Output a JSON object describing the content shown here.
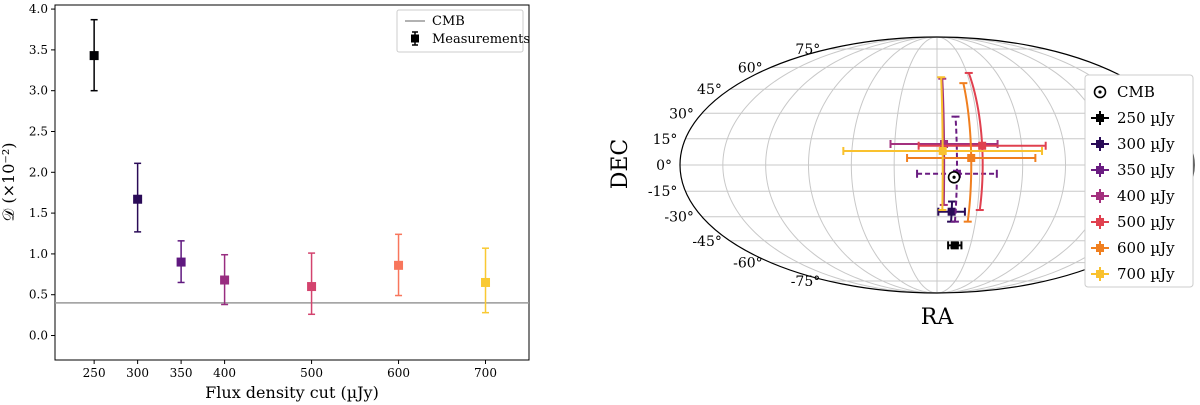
{
  "chart_data": [
    {
      "type": "scatter",
      "xlabel": "Flux density cut (µJy)",
      "ylabel": "𝒟 (×10⁻²)",
      "xlim": [
        205,
        750
      ],
      "ylim": [
        -0.3,
        4.05
      ],
      "xticks": [
        250,
        300,
        350,
        400,
        500,
        600,
        700
      ],
      "yticks": [
        0.0,
        0.5,
        1.0,
        1.5,
        2.0,
        2.5,
        3.0,
        3.5,
        4.0
      ],
      "cmb_level": 0.4,
      "legend": {
        "position": "top-right",
        "entries": [
          "CMB",
          "Measurements"
        ]
      },
      "series": [
        {
          "name": "Measurements",
          "points": [
            {
              "x": 250,
              "y": 3.43,
              "err_low": 0.43,
              "err_high": 0.44,
              "color": "#000004"
            },
            {
              "x": 300,
              "y": 1.67,
              "err_low": 0.4,
              "err_high": 0.44,
              "color": "#2a0b57"
            },
            {
              "x": 350,
              "y": 0.9,
              "err_low": 0.25,
              "err_high": 0.26,
              "color": "#5f187f"
            },
            {
              "x": 400,
              "y": 0.68,
              "err_low": 0.3,
              "err_high": 0.31,
              "color": "#982d80"
            },
            {
              "x": 500,
              "y": 0.6,
              "err_low": 0.34,
              "err_high": 0.41,
              "color": "#d3436e"
            },
            {
              "x": 600,
              "y": 0.86,
              "err_low": 0.37,
              "err_high": 0.38,
              "color": "#f8765c"
            },
            {
              "x": 700,
              "y": 0.65,
              "err_low": 0.37,
              "err_high": 0.42,
              "color": "#f9c932"
            }
          ]
        }
      ]
    },
    {
      "type": "scatter",
      "xlabel": "RA",
      "ylabel": "DEC",
      "projection": "mollweide",
      "dec_labels": [
        "75°",
        "60°",
        "45°",
        "30°",
        "15°",
        "0°",
        "-15°",
        "-30°",
        "-45°",
        "-60°",
        "-75°"
      ],
      "legend": {
        "position": "right"
      },
      "cmb": {
        "name": "CMB",
        "ra": 168,
        "dec": -7
      },
      "series": [
        {
          "name": "250 µJy",
          "color": "#000000",
          "ra": 164,
          "dec": -48,
          "ra_err": 6,
          "dec_err": 1.5,
          "dashed": false
        },
        {
          "name": "300 µJy",
          "color": "#2a0b57",
          "ra": 169,
          "dec": -27,
          "ra_err": 10,
          "dec_err_low": 6,
          "dec_err_high": 6,
          "dashed": false
        },
        {
          "name": "350 µJy",
          "color": "#6a1c81",
          "ra": 166,
          "dec": -5,
          "ra_err": 28,
          "dec_err_low": 28,
          "dec_err_high": 33,
          "dashed": true
        },
        {
          "name": "400 µJy",
          "color": "#a3307e",
          "ra": 175,
          "dec": 12,
          "ra_err": 38,
          "dec_err_low": 35,
          "dec_err_high": 40,
          "dashed": false
        },
        {
          "name": "500 µJy",
          "color": "#e0404f",
          "ra": 148,
          "dec": 11,
          "ra_err": 45,
          "dec_err_low": 37,
          "dec_err_high": 45,
          "dashed": false
        },
        {
          "name": "600 µJy",
          "color": "#f07f1f",
          "ra": 156,
          "dec": 4,
          "ra_err": 45,
          "dec_err_low": 37,
          "dec_err_high": 45,
          "dashed": false
        },
        {
          "name": "700 µJy",
          "color": "#f9c12e",
          "ra": 176,
          "dec": 8,
          "ra_err": 70,
          "dec_err_low": 34,
          "dec_err_high": 45,
          "dashed": false
        }
      ]
    }
  ]
}
